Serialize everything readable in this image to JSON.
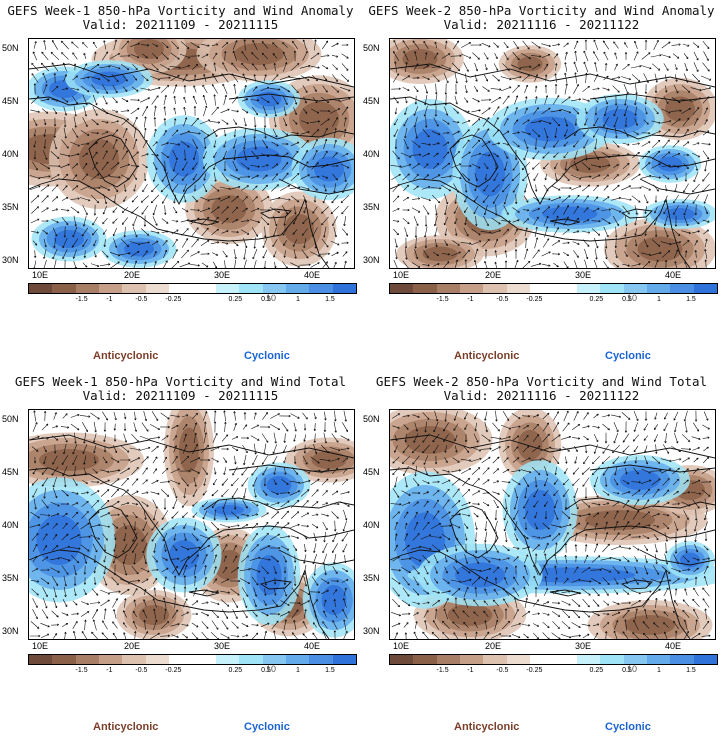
{
  "colorbar": {
    "ticks": [
      "-1.5",
      "-1",
      "-0.5",
      "-0.25",
      "0.25",
      "0.5",
      "1",
      "1.5"
    ],
    "mid_label": "10",
    "colors": [
      "#6e4a3a",
      "#8a6048",
      "#a87e66",
      "#c59f88",
      "#ddc2b0",
      "#eddcd0",
      "#ffffff",
      "#ffffff",
      "#c8f2fb",
      "#9fe4f7",
      "#86c7f2",
      "#64abec",
      "#4a8fe4",
      "#2f72d9"
    ]
  },
  "axes": {
    "lat_labels": [
      "50N",
      "45N",
      "40N",
      "35N",
      "30N"
    ],
    "lon_labels": [
      "10E",
      "20E",
      "30E",
      "40E"
    ]
  },
  "legend": {
    "anticyclonic": "Anticyclonic",
    "cyclonic": "Cyclonic"
  },
  "panels": [
    {
      "title": "GEFS Week-1 850-hPa Vorticity and Wind Anomaly",
      "valid": "Valid: 20211109 - 20211115"
    },
    {
      "title": "GEFS Week-2 850-hPa Vorticity and Wind Anomaly",
      "valid": "Valid: 20211116 - 20211122"
    },
    {
      "title": "GEFS Week-1 850-hPa Vorticity and Wind Total",
      "valid": "Valid: 20211109 - 20211115"
    },
    {
      "title": "GEFS Week-2 850-hPa Vorticity and Wind Total",
      "valid": "Valid: 20211116 - 20211122"
    }
  ]
}
